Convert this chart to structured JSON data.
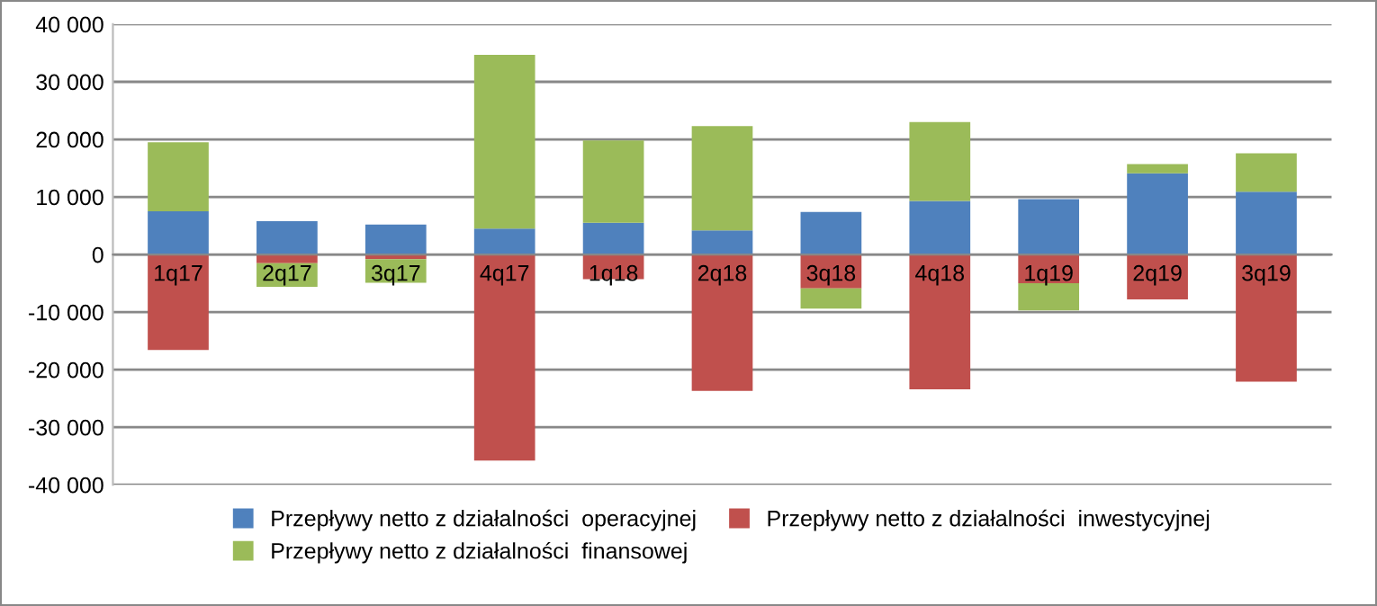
{
  "chart_data": {
    "type": "bar",
    "stacked": true,
    "categories": [
      "1q17",
      "2q17",
      "3q17",
      "4q17",
      "1q18",
      "2q18",
      "3q18",
      "4q18",
      "1q19",
      "2q19",
      "3q19"
    ],
    "series": [
      {
        "name": "Przepływy netto z działalności  operacyjnej",
        "color": "#4f81bd",
        "values": [
          7500,
          5800,
          5200,
          4500,
          5500,
          4200,
          7400,
          9300,
          9600,
          14100,
          10900
        ]
      },
      {
        "name": "Przepływy netto z działalności  inwestycyjnej",
        "color": "#c0504d",
        "values": [
          -16600,
          -1500,
          -800,
          -35800,
          -4300,
          -23700,
          -5900,
          -23400,
          -5000,
          -7800,
          -22100
        ]
      },
      {
        "name": "Przepływy netto z działalności  finansowej",
        "color": "#9bbb59",
        "values": [
          12000,
          -4100,
          -4100,
          30200,
          14300,
          18100,
          -3500,
          13700,
          -4700,
          1600,
          6700
        ]
      }
    ],
    "ylim": [
      -40000,
      40000
    ],
    "yticks": [
      {
        "value": -40000,
        "label": "-40 000"
      },
      {
        "value": -30000,
        "label": "-30 000"
      },
      {
        "value": -20000,
        "label": "-20 000"
      },
      {
        "value": -10000,
        "label": "-10 000"
      },
      0,
      {
        "value": 10000,
        "label": "10 000"
      },
      {
        "value": 20000,
        "label": "20 000"
      },
      {
        "value": 30000,
        "label": "30 000"
      },
      {
        "value": 40000,
        "label": "40 000"
      }
    ],
    "grid": "y",
    "legend": "bottom"
  }
}
